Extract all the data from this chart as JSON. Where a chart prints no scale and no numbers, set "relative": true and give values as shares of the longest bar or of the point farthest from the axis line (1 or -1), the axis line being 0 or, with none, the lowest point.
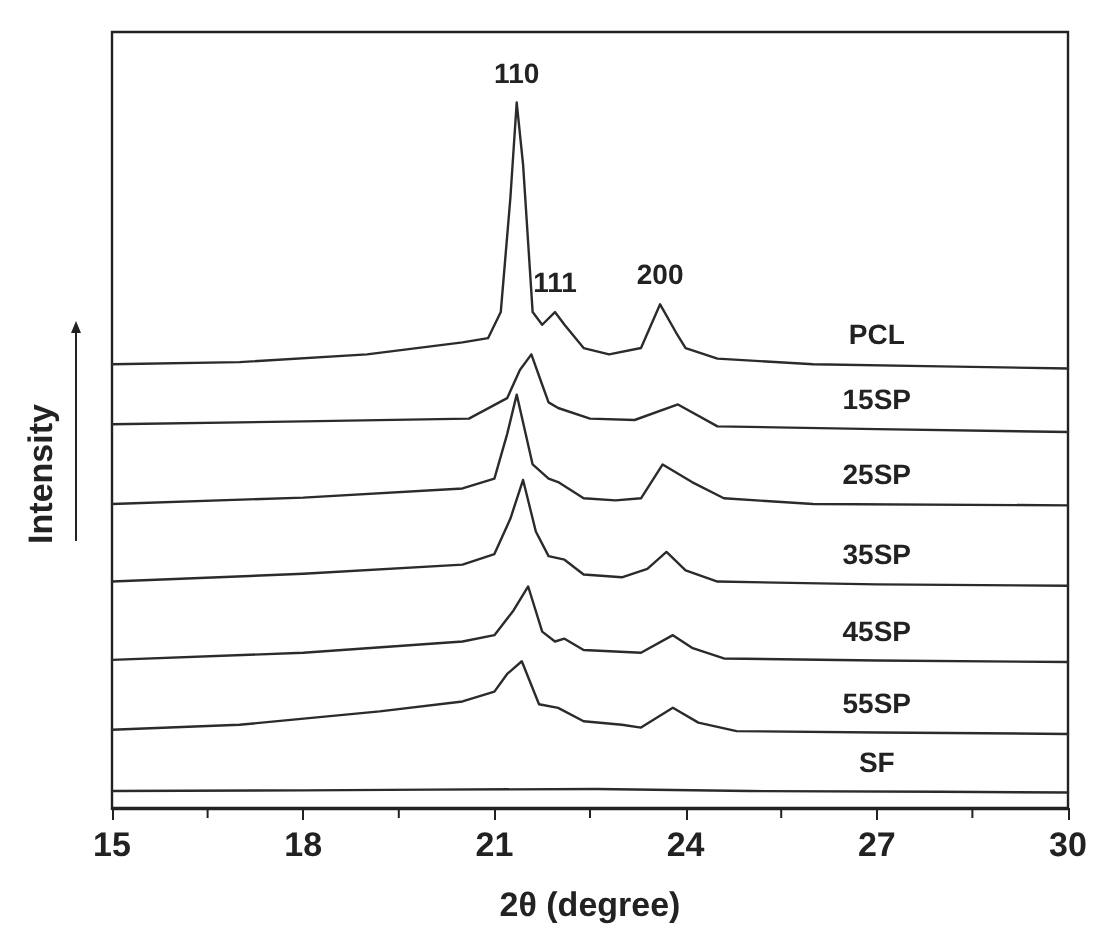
{
  "chart_data": {
    "type": "line",
    "relative": true,
    "xlabel": "2θ (degree)",
    "ylabel": "Intensity",
    "xlim": [
      15,
      30
    ],
    "xticks": [
      15,
      18,
      21,
      24,
      27,
      30
    ],
    "legend": false,
    "grid": false,
    "annotations": [
      {
        "text": "110",
        "x": 21.35,
        "y": 1.0
      },
      {
        "text": "111",
        "x": 21.95,
        "y": 0.703
      },
      {
        "text": "200",
        "x": 23.6,
        "y": 0.714
      }
    ],
    "series": [
      {
        "name": "PCL",
        "color": "#2b2b2b",
        "x": [
          15,
          17,
          19,
          20.5,
          20.9,
          21.1,
          21.25,
          21.35,
          21.45,
          21.6,
          21.75,
          21.95,
          22.1,
          22.4,
          22.8,
          23.3,
          23.6,
          23.85,
          24.0,
          24.5,
          26,
          28,
          30
        ],
        "values": [
          0.629,
          0.632,
          0.643,
          0.66,
          0.666,
          0.703,
          0.864,
          1.0,
          0.912,
          0.703,
          0.685,
          0.703,
          0.685,
          0.652,
          0.643,
          0.652,
          0.714,
          0.674,
          0.652,
          0.637,
          0.629,
          0.626,
          0.623
        ]
      },
      {
        "name": "15SP",
        "color": "#2b2b2b",
        "x": [
          15,
          18,
          20.6,
          21.2,
          21.4,
          21.58,
          21.75,
          21.85,
          22.0,
          22.5,
          23.2,
          23.88,
          24.5,
          27,
          30
        ],
        "values": [
          0.544,
          0.548,
          0.552,
          0.581,
          0.621,
          0.643,
          0.6,
          0.575,
          0.567,
          0.552,
          0.55,
          0.572,
          0.541,
          0.537,
          0.533
        ]
      },
      {
        "name": "25SP",
        "color": "#2b2b2b",
        "x": [
          15,
          18,
          20.5,
          21.0,
          21.2,
          21.35,
          21.6,
          21.85,
          22.0,
          22.4,
          22.9,
          23.3,
          23.64,
          24.1,
          24.6,
          26,
          30
        ],
        "values": [
          0.431,
          0.44,
          0.453,
          0.467,
          0.53,
          0.586,
          0.487,
          0.467,
          0.462,
          0.439,
          0.436,
          0.439,
          0.487,
          0.462,
          0.439,
          0.431,
          0.429
        ]
      },
      {
        "name": "35SP",
        "color": "#2b2b2b",
        "x": [
          15,
          18,
          20.5,
          21.0,
          21.25,
          21.45,
          21.65,
          21.85,
          22.1,
          22.4,
          23.0,
          23.4,
          23.7,
          24.0,
          24.5,
          27,
          30
        ],
        "values": [
          0.321,
          0.332,
          0.345,
          0.36,
          0.41,
          0.465,
          0.392,
          0.357,
          0.352,
          0.331,
          0.327,
          0.339,
          0.363,
          0.337,
          0.321,
          0.317,
          0.315
        ]
      },
      {
        "name": "45SP",
        "color": "#2b2b2b",
        "x": [
          15,
          18,
          20.5,
          21.0,
          21.3,
          21.53,
          21.75,
          21.95,
          22.1,
          22.4,
          23.3,
          23.8,
          24.1,
          24.6,
          27,
          30
        ],
        "values": [
          0.21,
          0.22,
          0.236,
          0.245,
          0.28,
          0.314,
          0.25,
          0.236,
          0.24,
          0.224,
          0.22,
          0.245,
          0.227,
          0.212,
          0.209,
          0.207
        ]
      },
      {
        "name": "55SP",
        "color": "#2b2b2b",
        "x": [
          15,
          17,
          19.2,
          20.5,
          21.0,
          21.2,
          21.43,
          21.7,
          22.0,
          22.4,
          23.0,
          23.3,
          23.8,
          24.2,
          24.8,
          27,
          30
        ],
        "values": [
          0.111,
          0.118,
          0.137,
          0.151,
          0.165,
          0.19,
          0.208,
          0.147,
          0.142,
          0.123,
          0.118,
          0.114,
          0.142,
          0.121,
          0.109,
          0.107,
          0.105
        ]
      },
      {
        "name": "SF",
        "color": "#2b2b2b",
        "x": [
          15,
          18,
          20,
          22.6,
          25,
          28,
          30
        ],
        "values": [
          0.024,
          0.025,
          0.026,
          0.027,
          0.024,
          0.023,
          0.022
        ]
      }
    ]
  }
}
